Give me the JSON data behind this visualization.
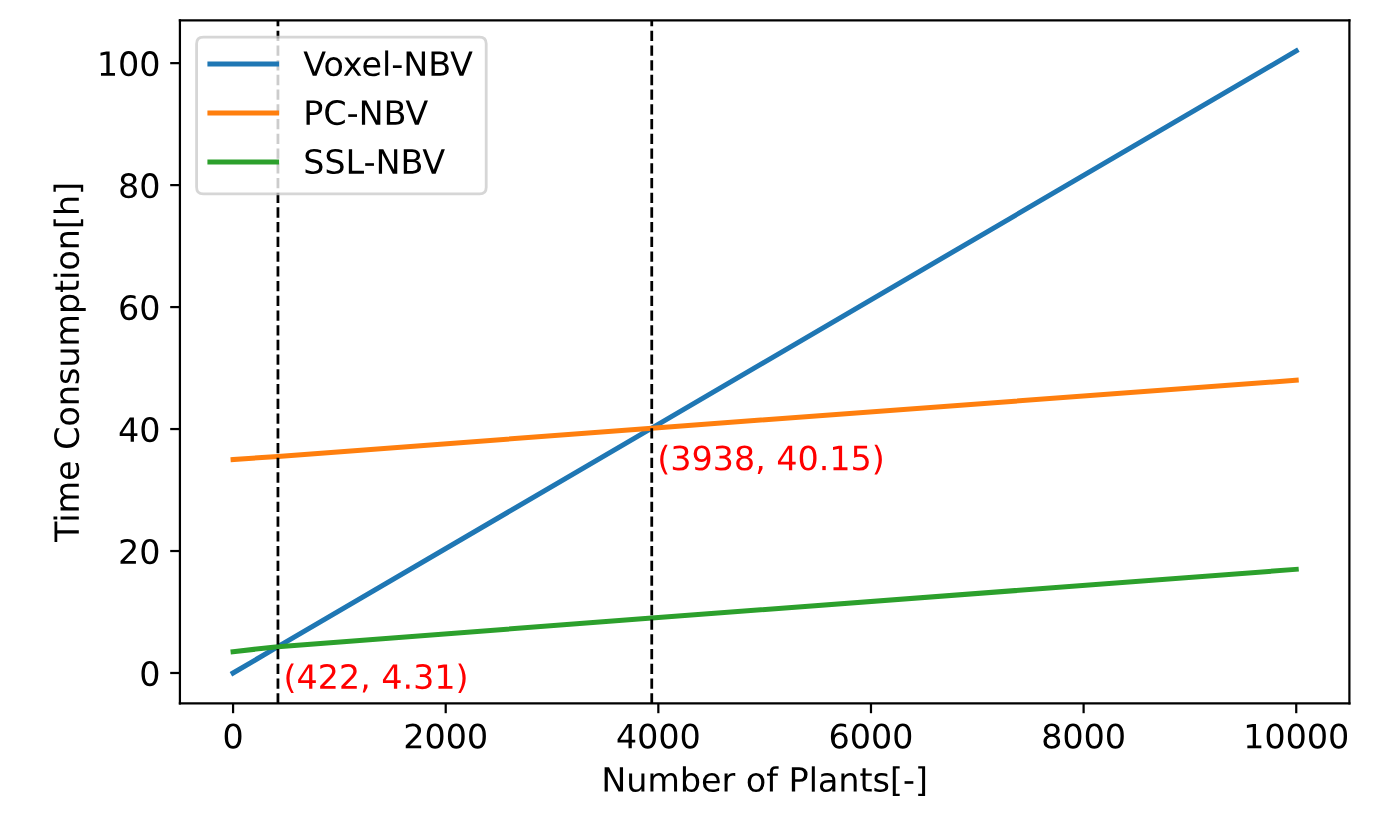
{
  "chart_data": {
    "type": "line",
    "xlabel": "Number of Plants[-]",
    "ylabel": "Time Consumption[h]",
    "x": [
      0,
      422,
      3938,
      10000
    ],
    "series": [
      {
        "name": "Voxel-NBV",
        "color": "#1f77b4",
        "values": [
          0,
          4.31,
          40.15,
          102
        ]
      },
      {
        "name": "PC-NBV",
        "color": "#ff7f0e",
        "values": [
          35,
          35.5,
          40.15,
          48
        ]
      },
      {
        "name": "SSL-NBV",
        "color": "#2ca02c",
        "values": [
          3.5,
          4.31,
          9,
          17
        ]
      }
    ],
    "xlim": [
      -500,
      10500
    ],
    "ylim": [
      -5,
      107
    ],
    "xticks": [
      0,
      2000,
      4000,
      6000,
      8000,
      10000
    ],
    "yticks": [
      0,
      20,
      40,
      60,
      80,
      100
    ],
    "ref_lines": [
      {
        "axis": "x",
        "value": 422,
        "color": "#000000",
        "line_style": "dashed"
      },
      {
        "axis": "x",
        "value": 3938,
        "color": "#000000",
        "line_style": "dashed"
      }
    ],
    "annotations": [
      {
        "text": "(422, 4.31)",
        "x": 422,
        "y": 4.31
      },
      {
        "text": "(3938, 40.15)",
        "x": 3938,
        "y": 40.15
      }
    ],
    "legend": "top left",
    "grid": false,
    "marker": "none",
    "line_style": "solid"
  }
}
